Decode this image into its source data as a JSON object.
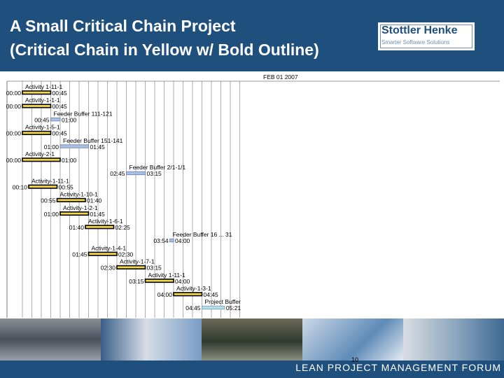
{
  "header": {
    "title_line1": "A Small Critical Chain Project",
    "title_line2": "(Critical Chain in Yellow w/ Bold Outline)"
  },
  "logo": {
    "name": "Stottler Henke",
    "tagline": "Smarter Software Solutions"
  },
  "gantt": {
    "date_label": "FEB 01 2007",
    "tasks": [
      {
        "name": "Activity 1-11-1",
        "start": "00:00",
        "end": "00:45",
        "type": "critical",
        "row": 0
      },
      {
        "name": "Activity-1-1-1",
        "start": "00:00",
        "end": "00:45",
        "type": "critical",
        "row": 1
      },
      {
        "name": "Feeder Buffer 111-121",
        "start": "00:45",
        "end": "01:00",
        "type": "buffer",
        "row": 2
      },
      {
        "name": "Activity-1-5-1",
        "start": "00:00",
        "end": "00:45",
        "type": "critical",
        "row": 3
      },
      {
        "name": "Feeder Buffer 151-141",
        "start": "01:00",
        "end": "01:45",
        "type": "buffer",
        "row": 4
      },
      {
        "name": "Activity-2-1",
        "start": "00:00",
        "end": "01:00",
        "type": "critical",
        "row": 5
      },
      {
        "name": "Feeder Buffer 2/1-1/1",
        "start": "02:45",
        "end": "03:15",
        "type": "buffer",
        "row": 6
      },
      {
        "name": "Activity-1-11-1",
        "start": "00:10",
        "end": "00:55",
        "type": "critical",
        "row": 7
      },
      {
        "name": "Activity-1-10-1",
        "start": "00:55",
        "end": "01:40",
        "type": "critical",
        "row": 8
      },
      {
        "name": "Activity-1-2-1",
        "start": "01:00",
        "end": "01:45",
        "type": "critical",
        "row": 9
      },
      {
        "name": "Activity-1-6-1",
        "start": "01:40",
        "end": "02:25",
        "type": "critical",
        "row": 10
      },
      {
        "name": "Feeder Buffer 16 ... 31",
        "start": "03:54",
        "end": "04:00",
        "type": "buffer",
        "row": 11
      },
      {
        "name": "Activity-1-4-1",
        "start": "01:45",
        "end": "02:30",
        "type": "critical",
        "row": 12
      },
      {
        "name": "Activity-1-7-1",
        "start": "02:30",
        "end": "03:15",
        "type": "critical",
        "row": 13
      },
      {
        "name": "Activity 1-11-1",
        "start": "03:15",
        "end": "04:00",
        "type": "critical",
        "row": 14
      },
      {
        "name": "Activity-1-3-1",
        "start": "04:00",
        "end": "04:45",
        "type": "critical",
        "row": 15
      },
      {
        "name": "Project Buffer",
        "start": "04:45",
        "end": "05:21",
        "type": "project",
        "row": 16
      }
    ]
  },
  "footer": {
    "text": "LEAN PROJECT MANAGEMENT FORUM",
    "page": "10"
  },
  "colors": {
    "header": "#1f4f7d",
    "critical": "#f2d64b",
    "buffer": "#a9c0e6",
    "project_buffer": "#b9dde6"
  }
}
